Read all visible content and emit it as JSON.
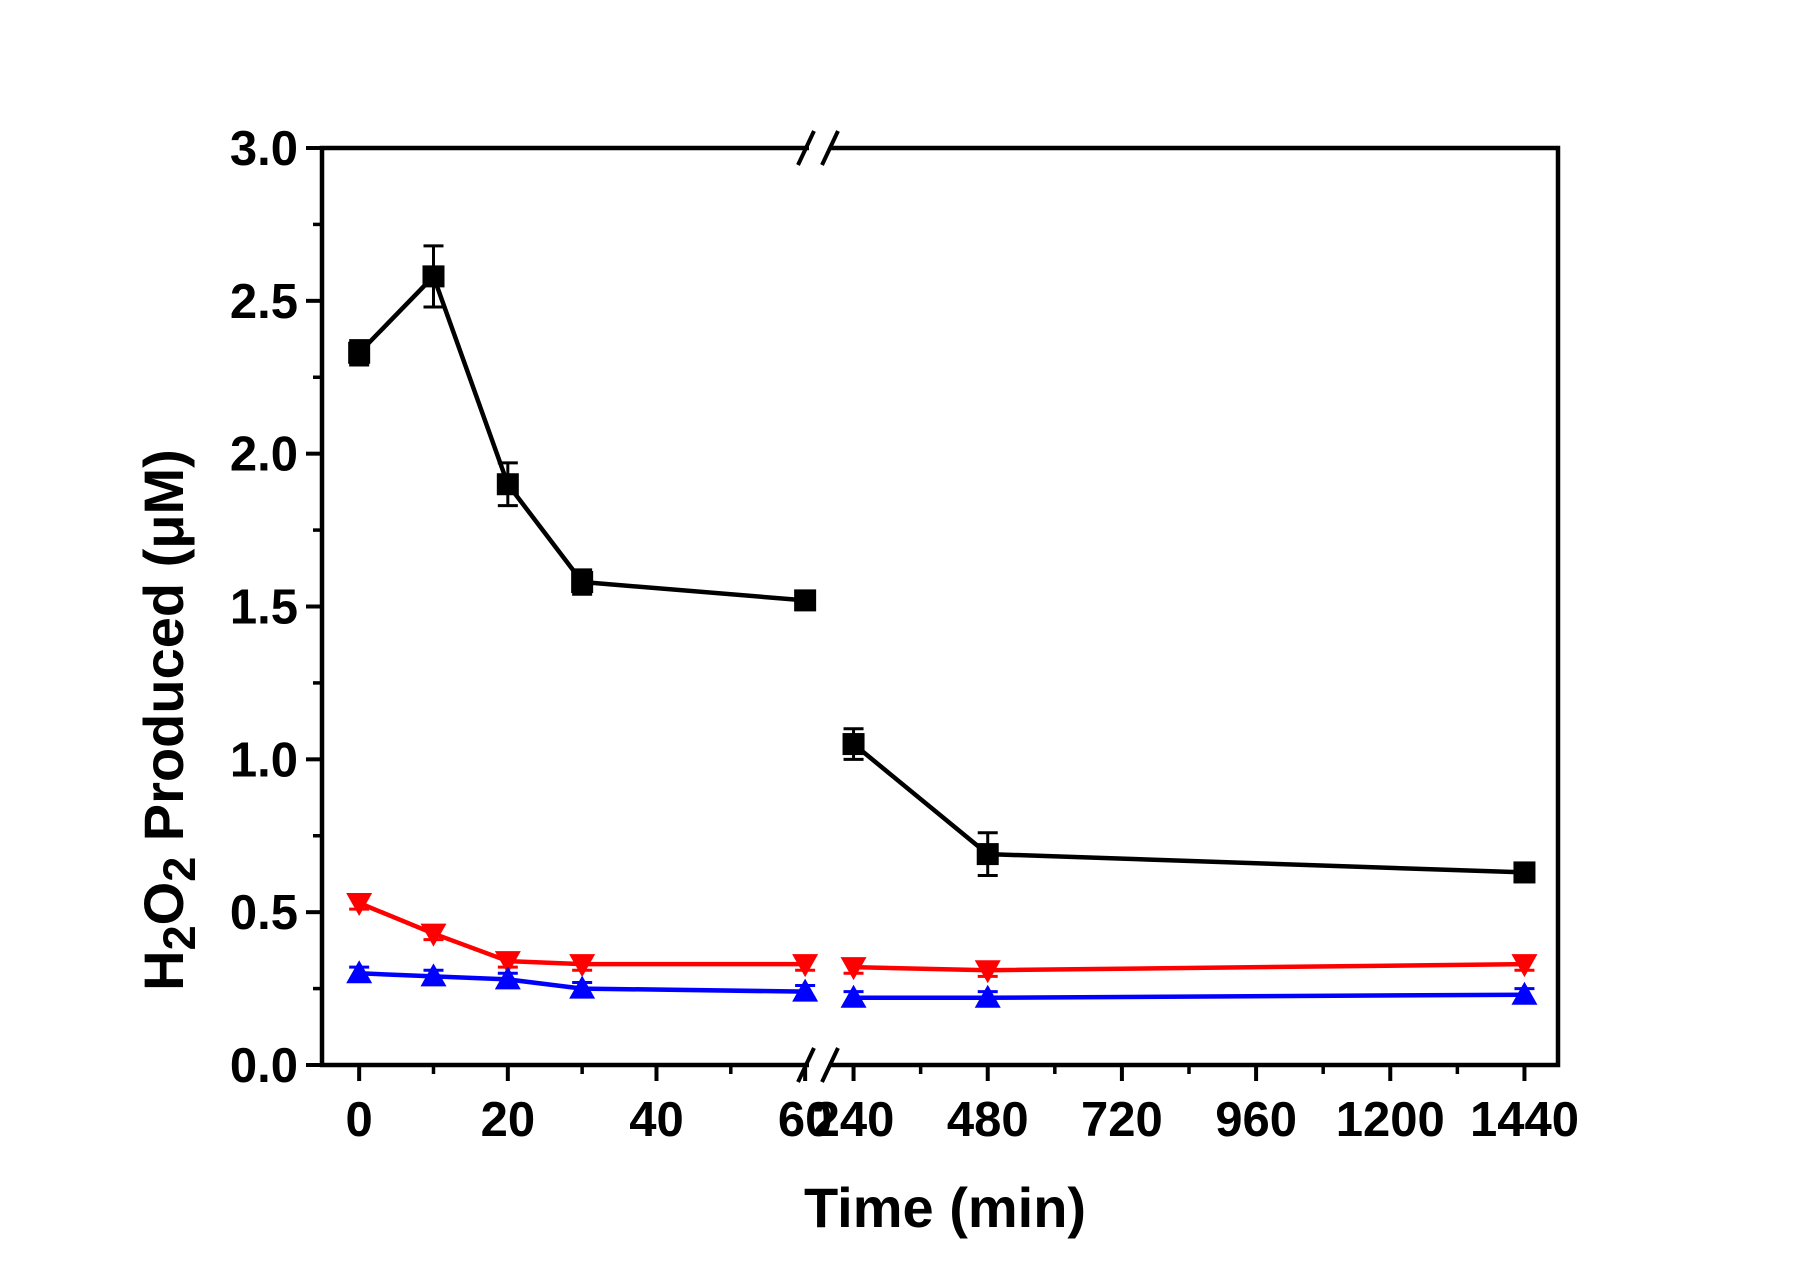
{
  "chart_data": {
    "type": "line",
    "xlabel": "Time (min)",
    "ylabel": {
      "prefix": "H",
      "sub1": "2",
      "mid": "O",
      "sub2": "2",
      "suffix": " Produced (μM)"
    },
    "ylim": [
      0,
      3.0
    ],
    "yticks": [
      "0.0",
      "0.5",
      "1.0",
      "1.5",
      "2.0",
      "2.5",
      "3.0"
    ],
    "x_break": true,
    "x_segments": [
      {
        "range": [
          -5,
          62
        ],
        "ticks": [
          "0",
          "20",
          "40",
          "60"
        ]
      },
      {
        "range": [
          180,
          1500
        ],
        "ticks": [
          "240",
          "480",
          "720",
          "960",
          "1200",
          "1440"
        ]
      }
    ],
    "series": [
      {
        "color": "#000000",
        "marker": "square",
        "segments": [
          {
            "x": [
              0,
              10,
              20,
              30,
              60
            ],
            "y": [
              2.33,
              2.58,
              1.9,
              1.58,
              1.52
            ],
            "err": [
              0.04,
              0.1,
              0.07,
              0.04,
              0.02
            ]
          },
          {
            "x": [
              240,
              480,
              1440
            ],
            "y": [
              1.05,
              0.69,
              0.63
            ],
            "err": [
              0.05,
              0.07,
              0.03
            ]
          }
        ]
      },
      {
        "color": "#ff0000",
        "marker": "triangle-down",
        "segments": [
          {
            "x": [
              0,
              10,
              20,
              30,
              60
            ],
            "y": [
              0.53,
              0.43,
              0.34,
              0.33,
              0.33
            ],
            "err": [
              0.02,
              0.02,
              0.02,
              0.02,
              0.02
            ]
          },
          {
            "x": [
              240,
              480,
              1440
            ],
            "y": [
              0.32,
              0.31,
              0.33
            ],
            "err": [
              0.02,
              0.02,
              0.02
            ]
          }
        ]
      },
      {
        "color": "#0000ff",
        "marker": "triangle-up",
        "segments": [
          {
            "x": [
              0,
              10,
              20,
              30,
              60
            ],
            "y": [
              0.3,
              0.29,
              0.28,
              0.25,
              0.24
            ],
            "err": [
              0.02,
              0.02,
              0.02,
              0.02,
              0.02
            ]
          },
          {
            "x": [
              240,
              480,
              1440
            ],
            "y": [
              0.22,
              0.22,
              0.23
            ],
            "err": [
              0.02,
              0.02,
              0.02
            ]
          }
        ]
      }
    ]
  }
}
